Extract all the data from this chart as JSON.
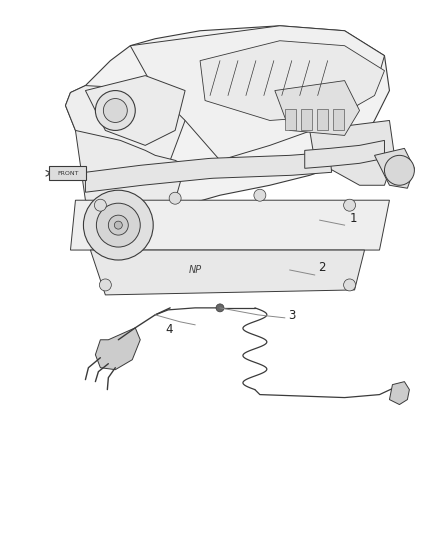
{
  "background_color": "#ffffff",
  "figure_width": 4.38,
  "figure_height": 5.33,
  "dpi": 100,
  "line_color": "#3a3a3a",
  "light_fill": "#f5f5f5",
  "mid_fill": "#e8e8e8",
  "dark_fill": "#d0d0d0",
  "callout_fontsize": 8.5,
  "text_color": "#333333",
  "label_line_color": "#888888"
}
